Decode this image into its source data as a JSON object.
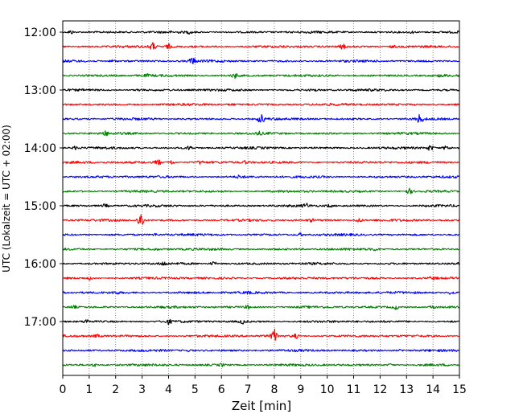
{
  "chart_data": {
    "type": "line",
    "subtype": "helicorder-seismogram",
    "xlabel": "Zeit  [min]",
    "ylabel": "UTC (Lokalzeit = UTC + 02:00)",
    "xlim": [
      0,
      15
    ],
    "x_ticks": [
      "0",
      "1",
      "2",
      "3",
      "4",
      "5",
      "6",
      "7",
      "8",
      "9",
      "10",
      "11",
      "12",
      "13",
      "14",
      "15"
    ],
    "y_tick_labels": [
      "12:00",
      "13:00",
      "14:00",
      "15:00",
      "16:00",
      "17:00"
    ],
    "vertical_grid": true,
    "grid_style": "dotted",
    "trace_interval_min": 15,
    "trace_colors": [
      "#000000",
      "#ff0000",
      "#0000ff",
      "#008000"
    ],
    "traces": [
      {
        "start": "12:00",
        "events": [
          [
            0.3,
            1.0
          ],
          [
            4.8,
            0.6
          ],
          [
            13.2,
            0.5
          ]
        ]
      },
      {
        "start": "12:15",
        "events": [
          [
            3.4,
            2.0
          ],
          [
            4.0,
            1.2
          ],
          [
            10.6,
            1.2
          ],
          [
            12.5,
            0.6
          ]
        ]
      },
      {
        "start": "12:30",
        "events": [
          [
            1.9,
            0.6
          ],
          [
            4.9,
            1.8
          ]
        ]
      },
      {
        "start": "12:45",
        "events": [
          [
            6.5,
            1.3
          ],
          [
            3.2,
            0.5
          ],
          [
            14.3,
            0.5
          ]
        ]
      },
      {
        "start": "13:00",
        "events": [
          [
            2.9,
            0.6
          ],
          [
            9.5,
            0.5
          ]
        ]
      },
      {
        "start": "13:15",
        "events": [
          [
            6.4,
            0.4
          ]
        ]
      },
      {
        "start": "13:30",
        "events": [
          [
            7.5,
            2.4
          ],
          [
            13.5,
            2.2
          ]
        ]
      },
      {
        "start": "13:45",
        "events": [
          [
            1.6,
            1.0
          ],
          [
            7.4,
            0.7
          ]
        ]
      },
      {
        "start": "14:00",
        "events": [
          [
            4.8,
            1.0
          ],
          [
            0.5,
            0.8
          ],
          [
            13.9,
            1.4
          ],
          [
            14.5,
            1.0
          ]
        ]
      },
      {
        "start": "14:15",
        "events": [
          [
            3.6,
            1.6
          ],
          [
            4.1,
            1.2
          ],
          [
            5.2,
            0.8
          ],
          [
            6.9,
            0.7
          ]
        ]
      },
      {
        "start": "14:30",
        "events": [
          [
            6.7,
            0.8
          ]
        ]
      },
      {
        "start": "14:45",
        "events": [
          [
            13.1,
            1.4
          ]
        ]
      },
      {
        "start": "15:00",
        "events": [
          [
            1.6,
            0.9
          ],
          [
            9.2,
            1.0
          ],
          [
            10.1,
            0.6
          ]
        ]
      },
      {
        "start": "15:15",
        "events": [
          [
            2.95,
            4.5
          ],
          [
            11.2,
            1.2
          ],
          [
            9.4,
            0.6
          ]
        ]
      },
      {
        "start": "15:30",
        "events": [
          [
            9.0,
            0.7
          ],
          [
            3.5,
            0.5
          ]
        ]
      },
      {
        "start": "15:45",
        "events": [
          [
            11.8,
            0.7
          ],
          [
            3.5,
            0.5
          ]
        ]
      },
      {
        "start": "16:00",
        "events": [
          [
            3.8,
            0.8
          ],
          [
            5.7,
            1.0
          ]
        ]
      },
      {
        "start": "16:15",
        "events": [
          [
            1.0,
            0.8
          ],
          [
            14.0,
            0.6
          ]
        ]
      },
      {
        "start": "16:30",
        "events": [
          [
            2.0,
            0.6
          ],
          [
            14.7,
            1.0
          ],
          [
            7.0,
            0.5
          ]
        ]
      },
      {
        "start": "16:45",
        "events": [
          [
            0.4,
            0.8
          ],
          [
            7.0,
            0.8
          ],
          [
            12.6,
            1.0
          ],
          [
            14.0,
            1.0
          ]
        ]
      },
      {
        "start": "17:00",
        "events": [
          [
            0.9,
            1.0
          ],
          [
            4.0,
            1.0
          ],
          [
            6.8,
            1.0
          ]
        ]
      },
      {
        "start": "17:15",
        "events": [
          [
            8.0,
            3.5
          ],
          [
            8.8,
            1.2
          ],
          [
            1.3,
            0.7
          ]
        ]
      },
      {
        "start": "17:30",
        "events": [
          [
            4.8,
            0.5
          ],
          [
            12.8,
            0.4
          ]
        ]
      },
      {
        "start": "17:45",
        "events": [
          [
            1.2,
            0.7
          ],
          [
            6.0,
            0.6
          ],
          [
            12.4,
            0.5
          ]
        ]
      }
    ]
  }
}
